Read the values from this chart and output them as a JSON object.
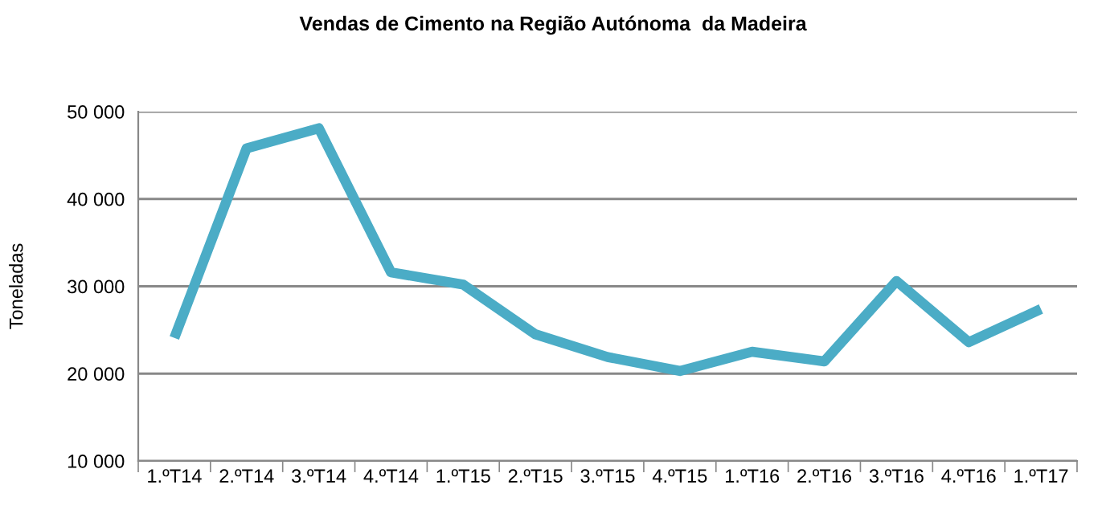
{
  "chart_data": {
    "type": "line",
    "title": "Vendas de Cimento na Região Autónoma  da Madeira",
    "ylabel": "Toneladas",
    "categories": [
      "1.ºT14",
      "2.ºT14",
      "3.ºT14",
      "4.ºT14",
      "1.ºT15",
      "2.ºT15",
      "3.ºT15",
      "4.ºT15",
      "1.ºT16",
      "2.ºT16",
      "3.ºT16",
      "4.ºT16",
      "1.ºT17"
    ],
    "series": [
      {
        "color": "#4bacc6",
        "values": [
          24100,
          45800,
          48100,
          31600,
          30200,
          24500,
          21900,
          20300,
          22500,
          21400,
          30600,
          23600,
          27400
        ]
      }
    ],
    "ylim": [
      10000,
      50000
    ],
    "yticks": [
      {
        "value": 10000,
        "label": "10 000"
      },
      {
        "value": 20000,
        "label": "20 000"
      },
      {
        "value": 30000,
        "label": "30 000"
      },
      {
        "value": 40000,
        "label": "40 000"
      },
      {
        "value": 50000,
        "label": "50 000"
      }
    ],
    "grid": "y",
    "marker": "none",
    "line_style": "solid"
  }
}
